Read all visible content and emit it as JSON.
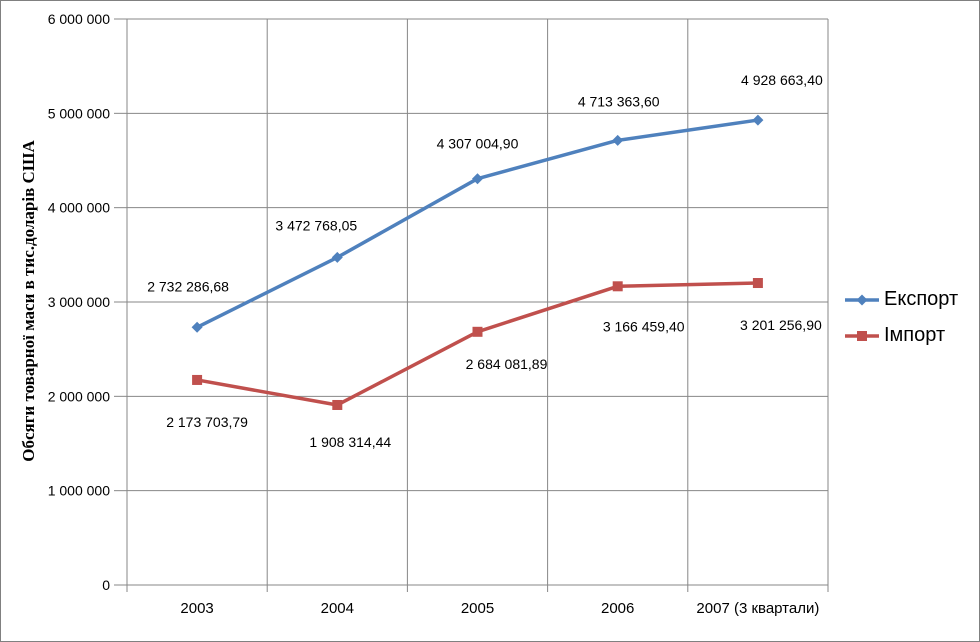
{
  "chart_data": {
    "type": "line",
    "title": "",
    "xlabel": "",
    "ylabel": "Обсяги товарної маси в тис.доларів США",
    "categories": [
      "2003",
      "2004",
      "2005",
      "2006",
      "2007 (3 квартали)"
    ],
    "series": [
      {
        "name": "Експорт",
        "color": "#4F81BD",
        "marker": "diamond",
        "values": [
          2732286.68,
          3472768.05,
          4307004.9,
          4713363.6,
          4928663.4
        ],
        "data_labels": [
          "2 732 286,68",
          "3 472 768,05",
          "4 307 004,90",
          "4 713 363,60",
          "4 928 663,40"
        ]
      },
      {
        "name": "Імпорт",
        "color": "#C0504D",
        "marker": "square",
        "values": [
          2173703.79,
          1908314.44,
          2684081.89,
          3166459.4,
          3201256.9
        ],
        "data_labels": [
          "2 173 703,79",
          "1 908 314,44",
          "2 684 081,89",
          "3 166 459,40",
          "3 201 256,90"
        ]
      }
    ],
    "ylim": [
      0,
      6000000
    ],
    "ytick_interval": 1000000,
    "ytick_labels": [
      "0",
      "1 000 000",
      "2 000 000",
      "3 000 000",
      "4 000 000",
      "5 000 000",
      "6 000 000"
    ],
    "grid": true,
    "legend_position": "right",
    "colors": {
      "gridline": "#878787",
      "border": "#808080",
      "text": "#000000"
    }
  }
}
